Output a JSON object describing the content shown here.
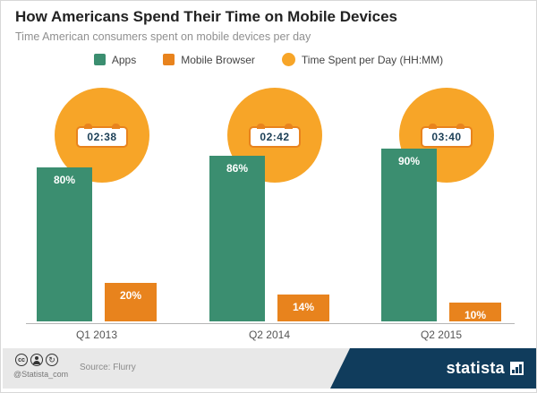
{
  "header": {
    "title": "How Americans Spend Their Time on Mobile Devices",
    "subtitle": "Time American consumers spent on mobile devices per day"
  },
  "legend": {
    "apps": "Apps",
    "browser": "Mobile Browser",
    "time": "Time Spent per Day (HH:MM)"
  },
  "colors": {
    "apps_green": "#3b8e70",
    "browser_orange": "#e8831d",
    "time_yellow": "#f7a528",
    "brand_navy": "#103c5c"
  },
  "chart_data": {
    "type": "bar",
    "categories": [
      "Q1 2013",
      "Q2 2014",
      "Q2 2015"
    ],
    "series": [
      {
        "name": "Apps",
        "values": [
          80,
          86,
          90
        ],
        "labels": [
          "80%",
          "86%",
          "90%"
        ]
      },
      {
        "name": "Mobile Browser",
        "values": [
          20,
          14,
          10
        ],
        "labels": [
          "20%",
          "14%",
          "10%"
        ]
      }
    ],
    "times": [
      "02:38",
      "02:42",
      "03:40"
    ],
    "ylim": [
      0,
      100
    ],
    "ylabel": "",
    "xlabel": "",
    "legend_position": "top",
    "grid": false
  },
  "footer": {
    "handle": "@Statista_com",
    "source": "Source: Flurry",
    "brand": "statista",
    "license_icons": [
      "cc-icon",
      "attribution-person-icon",
      "share-alike-icon"
    ],
    "cc_label": "cc",
    "sa_glyph": "↻"
  }
}
